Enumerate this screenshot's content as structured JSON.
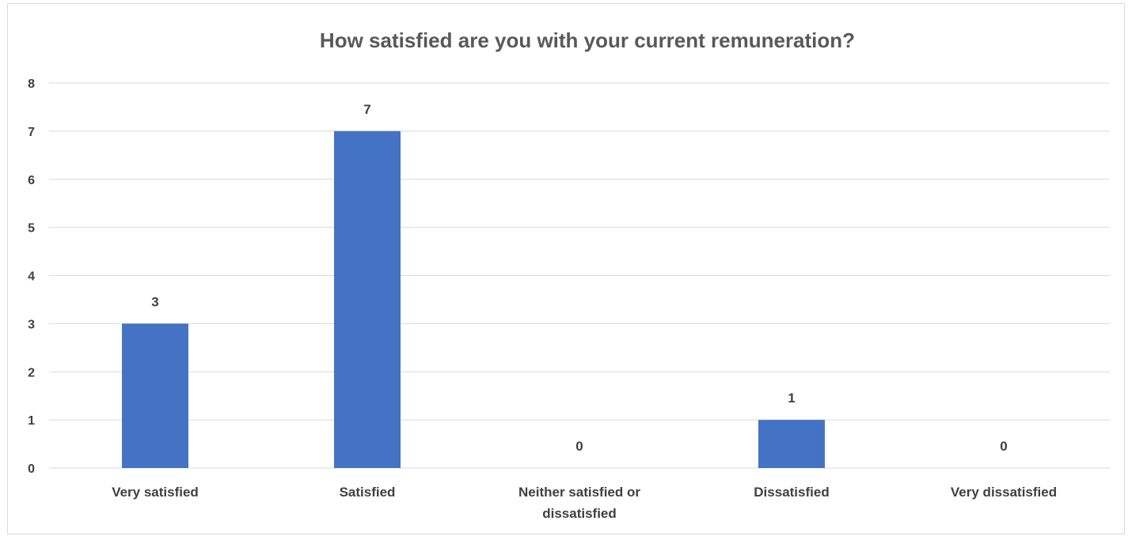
{
  "chart_data": {
    "type": "bar",
    "title": "How satisfied are you with your current remuneration?",
    "categories": [
      "Very satisfied",
      "Satisfied",
      "Neither satisfied or dissatisfied",
      "Dissatisfied",
      "Very dissatisfied"
    ],
    "category_label_lines": [
      [
        "Very satisfied"
      ],
      [
        "Satisfied"
      ],
      [
        "Neither satisfied or",
        "dissatisfied"
      ],
      [
        "Dissatisfied"
      ],
      [
        "Very dissatisfied"
      ]
    ],
    "values": [
      3,
      7,
      0,
      1,
      0
    ],
    "data_labels": [
      "3",
      "7",
      "0",
      "1",
      "0"
    ],
    "xlabel": "",
    "ylabel": "",
    "ylim": [
      0,
      8
    ],
    "yticks": [
      0,
      1,
      2,
      3,
      4,
      5,
      6,
      7,
      8
    ],
    "grid": true,
    "legend": "none",
    "bar_color": "#4472c4",
    "gridline_color": "#d9d9d9"
  }
}
